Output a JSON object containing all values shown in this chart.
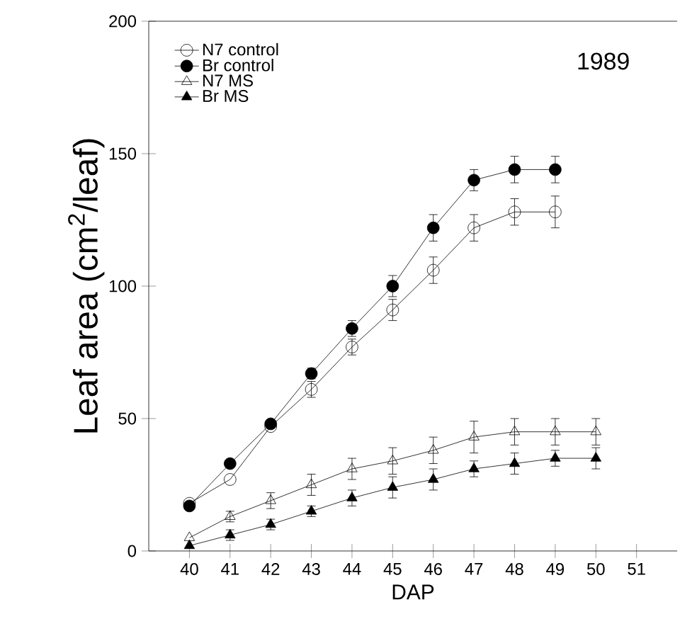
{
  "chart_data": {
    "type": "line",
    "xlabel": "DAP",
    "ylabel": "Leaf area (cm$^{2}$/leaf)",
    "annotations": [
      "1989"
    ],
    "xlim": [
      39,
      52
    ],
    "xticks": [
      40,
      41,
      42,
      43,
      44,
      45,
      46,
      47,
      48,
      49,
      50,
      51
    ],
    "ylim": [
      0,
      200
    ],
    "yticks": [
      0,
      50,
      100,
      150,
      200
    ],
    "legend": "top left",
    "grid": false,
    "line_style": "solid",
    "series": [
      {
        "name": "N7 control",
        "color": "#000000",
        "marker": "circle-open",
        "x": [
          40,
          41,
          42,
          43,
          44,
          45,
          46,
          47,
          48,
          49
        ],
        "values": [
          18,
          27,
          47,
          61,
          77,
          91,
          106,
          122,
          128,
          128
        ],
        "errors": [
          null,
          null,
          null,
          3,
          3,
          4,
          5,
          5,
          5,
          6
        ]
      },
      {
        "name": "Br control",
        "color": "#000000",
        "marker": "circle",
        "x": [
          40,
          41,
          42,
          43,
          44,
          45,
          46,
          47,
          48,
          49
        ],
        "values": [
          17,
          33,
          48,
          67,
          84,
          100,
          122,
          140,
          144,
          144
        ],
        "errors": [
          null,
          null,
          null,
          2,
          3,
          4,
          5,
          4,
          5,
          5
        ]
      },
      {
        "name": "N7 MS",
        "color": "#000000",
        "marker": "triangle-open",
        "x": [
          40,
          41,
          42,
          43,
          44,
          45,
          46,
          47,
          48,
          49,
          50
        ],
        "values": [
          5,
          13,
          19,
          25,
          31,
          34,
          38,
          43,
          45,
          45,
          45
        ],
        "errors": [
          null,
          2,
          3,
          4,
          4,
          5,
          5,
          6,
          5,
          5,
          5
        ]
      },
      {
        "name": "Br  MS",
        "color": "#000000",
        "marker": "triangle",
        "x": [
          40,
          41,
          42,
          43,
          44,
          45,
          46,
          47,
          48,
          49,
          50
        ],
        "values": [
          2,
          6,
          10,
          15,
          20,
          24,
          27,
          31,
          33,
          35,
          35
        ],
        "errors": [
          null,
          2,
          2,
          2,
          3,
          4,
          4,
          3,
          4,
          3,
          4
        ]
      }
    ]
  }
}
